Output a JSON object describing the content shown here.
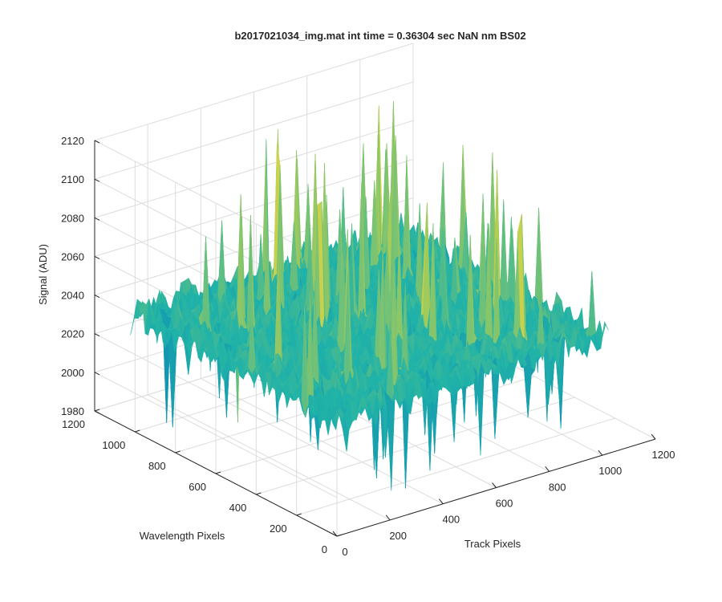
{
  "chart_data": {
    "type": "surface",
    "title": "b2017021034_img.mat int time = 0.36304 sec  NaN nm BS02",
    "xlabel": "Track Pixels",
    "ylabel": "Wavelength Pixels",
    "zlabel": "Signal (ADU)",
    "xlim": [
      0,
      1200
    ],
    "ylim": [
      0,
      1200
    ],
    "zlim": [
      1980,
      2120
    ],
    "xticks": [
      "0",
      "200",
      "400",
      "600",
      "800",
      "1000",
      "1200"
    ],
    "yticks": [
      "0",
      "200",
      "400",
      "600",
      "800",
      "1000",
      "1200"
    ],
    "zticks": [
      "1980",
      "2000",
      "2020",
      "2040",
      "2060",
      "2080",
      "2100",
      "2120"
    ],
    "data_extent": {
      "x": [
        1,
        1024
      ],
      "y": [
        1,
        1024
      ]
    },
    "surface": {
      "baseline": 2040,
      "typical_range": [
        2000,
        2080
      ],
      "max": 2120,
      "min": 1985,
      "colormap": "parula"
    },
    "grid": true,
    "view": "3D oblique",
    "colors": {
      "grid": "#dcdcdc",
      "axis": "#262626",
      "colormap_low": "#0072bd",
      "colormap_mid": "#21b3a8",
      "colormap_high": "#e8d84a"
    }
  }
}
